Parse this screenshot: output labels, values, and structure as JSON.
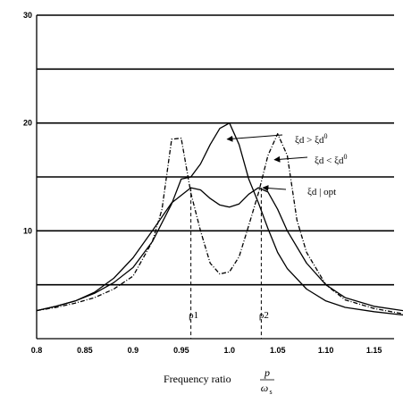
{
  "chart_data": {
    "type": "line",
    "xlabel": "Frequency ratio",
    "xlabel_fraction": {
      "numerator": "p",
      "denominator": "ω",
      "denominator_subscript": "s"
    },
    "ylabel": "",
    "xlim": [
      0.8,
      1.18
    ],
    "ylim": [
      0,
      30
    ],
    "x_ticks": [
      {
        "value": 0.8,
        "label": "0.8"
      },
      {
        "value": 0.85,
        "label": "0.85"
      },
      {
        "value": 0.9,
        "label": "0.9"
      },
      {
        "value": 0.95,
        "label": "0.95"
      },
      {
        "value": 1.0,
        "label": "1.0"
      },
      {
        "value": 1.05,
        "label": "1.05"
      },
      {
        "value": 1.1,
        "label": "1.10"
      },
      {
        "value": 1.15,
        "label": "1.15"
      }
    ],
    "y_ticks": [
      {
        "value": 10,
        "label": "10"
      },
      {
        "value": 20,
        "label": "20"
      },
      {
        "value": 30,
        "label": "30"
      }
    ],
    "gridlines_y": [
      5,
      10,
      15,
      20,
      25,
      30
    ],
    "grid": "horizontal",
    "series": [
      {
        "style": "solid",
        "points": [
          [
            0.8,
            2.6
          ],
          [
            0.82,
            3.0
          ],
          [
            0.84,
            3.5
          ],
          [
            0.86,
            4.2
          ],
          [
            0.88,
            5.2
          ],
          [
            0.9,
            6.6
          ],
          [
            0.92,
            9.0
          ],
          [
            0.94,
            12.5
          ],
          [
            0.95,
            14.8
          ],
          [
            0.96,
            15.0
          ],
          [
            0.97,
            16.2
          ],
          [
            0.98,
            18.0
          ],
          [
            0.99,
            19.5
          ],
          [
            1.0,
            20.0
          ],
          [
            1.01,
            18.0
          ],
          [
            1.02,
            14.8
          ],
          [
            1.03,
            12.6
          ],
          [
            1.04,
            10.2
          ],
          [
            1.05,
            8.0
          ],
          [
            1.06,
            6.5
          ],
          [
            1.08,
            4.6
          ],
          [
            1.1,
            3.5
          ],
          [
            1.12,
            2.9
          ],
          [
            1.15,
            2.5
          ],
          [
            1.18,
            2.2
          ]
        ]
      },
      {
        "style": "dash-dot",
        "points": [
          [
            0.8,
            2.6
          ],
          [
            0.82,
            2.9
          ],
          [
            0.84,
            3.3
          ],
          [
            0.86,
            3.8
          ],
          [
            0.88,
            4.6
          ],
          [
            0.9,
            5.8
          ],
          [
            0.92,
            9.0
          ],
          [
            0.93,
            12.0
          ],
          [
            0.94,
            18.5
          ],
          [
            0.95,
            18.6
          ],
          [
            0.96,
            13.5
          ],
          [
            0.97,
            10.0
          ],
          [
            0.98,
            7.0
          ],
          [
            0.99,
            6.0
          ],
          [
            1.0,
            6.2
          ],
          [
            1.01,
            7.6
          ],
          [
            1.02,
            10.5
          ],
          [
            1.03,
            13.5
          ],
          [
            1.04,
            17.0
          ],
          [
            1.05,
            19.0
          ],
          [
            1.06,
            17.0
          ],
          [
            1.07,
            11.0
          ],
          [
            1.08,
            8.0
          ],
          [
            1.1,
            5.0
          ],
          [
            1.12,
            3.6
          ],
          [
            1.15,
            2.8
          ],
          [
            1.18,
            2.3
          ]
        ]
      },
      {
        "style": "solid",
        "points": [
          [
            0.8,
            2.6
          ],
          [
            0.82,
            3.0
          ],
          [
            0.84,
            3.5
          ],
          [
            0.86,
            4.3
          ],
          [
            0.88,
            5.6
          ],
          [
            0.9,
            7.5
          ],
          [
            0.92,
            10.0
          ],
          [
            0.94,
            12.6
          ],
          [
            0.96,
            14.0
          ],
          [
            0.97,
            13.8
          ],
          [
            0.98,
            13.0
          ],
          [
            0.99,
            12.4
          ],
          [
            1.0,
            12.2
          ],
          [
            1.01,
            12.5
          ],
          [
            1.02,
            13.4
          ],
          [
            1.03,
            14.0
          ],
          [
            1.04,
            13.6
          ],
          [
            1.05,
            12.0
          ],
          [
            1.06,
            10.0
          ],
          [
            1.08,
            7.0
          ],
          [
            1.1,
            5.0
          ],
          [
            1.12,
            3.8
          ],
          [
            1.15,
            3.0
          ],
          [
            1.18,
            2.6
          ]
        ]
      }
    ],
    "vertical_markers": [
      {
        "x": 0.96,
        "label": "ρ1",
        "y_top": 14.0
      },
      {
        "x": 1.033,
        "label": "ρ2",
        "y_top": 14.0
      }
    ],
    "annotations": [
      {
        "text": "ξd > ξd0",
        "sup": "0",
        "base": "ξd > ξd",
        "point_to": [
          0.996,
          18.5
        ]
      },
      {
        "text": "ξd < ξd0",
        "sup": "0",
        "base": "ξd < ξd",
        "point_to": [
          1.045,
          16.6
        ]
      },
      {
        "text": "ξd | opt",
        "point_to": [
          1.033,
          14.0
        ]
      }
    ]
  }
}
